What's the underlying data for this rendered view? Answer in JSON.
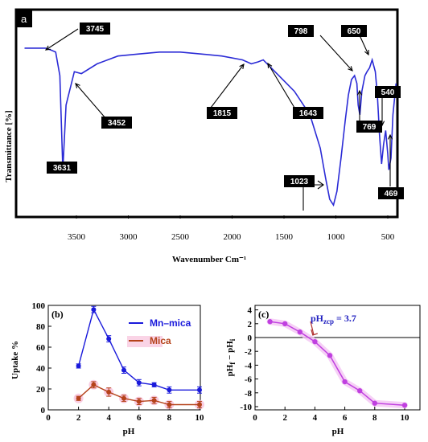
{
  "ftir": {
    "panel_label": "a",
    "xlabel": "Wavenumber  Cm⁻¹",
    "ylabel": "Transmittance  [%]",
    "xticks": [
      "3500",
      "3000",
      "2500",
      "2000",
      "1500",
      "1000",
      "500"
    ],
    "peaks": [
      "3745",
      "3631",
      "3452",
      "1815",
      "1643",
      "1023",
      "798",
      "650",
      "769",
      "540",
      "469"
    ]
  },
  "chart_data": [
    {
      "type": "line",
      "panel": "a",
      "xlabel": "Wavenumber  Cm⁻¹",
      "ylabel": "Transmittance  [%]",
      "xlim": [
        4000,
        400
      ],
      "annotated_peaks": [
        3745,
        3631,
        3452,
        1815,
        1643,
        1023,
        798,
        650,
        769,
        540,
        469
      ],
      "x": [
        4000,
        3800,
        3745,
        3700,
        3660,
        3631,
        3600,
        3520,
        3452,
        3300,
        3100,
        2900,
        2700,
        2500,
        2300,
        2100,
        1900,
        1815,
        1750,
        1700,
        1643,
        1550,
        1400,
        1250,
        1150,
        1100,
        1060,
        1023,
        990,
        950,
        910,
        880,
        850,
        820,
        798,
        785,
        769,
        750,
        720,
        700,
        675,
        650,
        620,
        600,
        580,
        560,
        540,
        520,
        500,
        490,
        469,
        450,
        420
      ],
      "values": [
        84,
        84,
        83,
        82,
        70,
        22,
        55,
        72,
        71,
        76,
        80,
        81,
        82,
        82,
        81,
        80,
        78,
        76,
        77,
        78,
        75,
        70,
        62,
        50,
        33,
        18,
        7,
        4,
        11,
        28,
        47,
        60,
        68,
        70,
        66,
        55,
        50,
        62,
        70,
        72,
        74,
        78,
        72,
        60,
        40,
        25,
        35,
        42,
        30,
        22,
        28,
        50,
        66
      ]
    },
    {
      "type": "line",
      "panel": "b",
      "xlabel": "pH",
      "ylabel": "Uptake %",
      "xlim": [
        0,
        10
      ],
      "ylim": [
        0,
        100
      ],
      "xticks": [
        0,
        2,
        4,
        6,
        8,
        10
      ],
      "yticks": [
        0,
        20,
        40,
        60,
        80,
        100
      ],
      "legend": "top-right",
      "x": [
        2,
        3,
        4,
        5,
        6,
        7,
        8,
        10
      ],
      "series": [
        {
          "name": "Mn–mica",
          "color": "#1a1adb",
          "values": [
            42,
            96,
            68,
            38,
            26,
            24,
            19,
            19
          ],
          "errors": [
            2,
            3,
            3,
            3,
            3,
            2,
            3,
            3
          ]
        },
        {
          "name": "Mica",
          "color": "#b5421a",
          "values": [
            11,
            24,
            17,
            11,
            8,
            9,
            5,
            5
          ],
          "errors": [
            2,
            3,
            4,
            3,
            3,
            3,
            3,
            3
          ]
        }
      ]
    },
    {
      "type": "line",
      "panel": "c",
      "xlabel": "pH",
      "ylabel": "pHᶠ − pHᵢ",
      "xlim": [
        0,
        10.5
      ],
      "ylim": [
        -11,
        4.5
      ],
      "xticks": [
        0,
        2,
        4,
        6,
        8,
        10
      ],
      "yticks": [
        4,
        2,
        0,
        -2,
        -4,
        -6,
        -8,
        -10
      ],
      "annotation": "pHzcp = 3.7",
      "x": [
        1,
        2,
        3,
        4,
        5,
        6,
        7,
        8,
        10
      ],
      "series": [
        {
          "name": "",
          "color": "#c040e0",
          "values": [
            2.3,
            2.0,
            0.8,
            -0.6,
            -2.6,
            -6.4,
            -7.7,
            -9.5,
            -9.8
          ]
        }
      ]
    }
  ],
  "panels": {
    "b_label": "(b)",
    "c_label": "(c)",
    "c_annot_main": "pH",
    "c_annot_sub": "zcp",
    "c_annot_val": " = 3.7",
    "c_ylabel_main": "pH",
    "c_ylabel_f": "f",
    "c_ylabel_mid": " − pH",
    "c_ylabel_i": "i"
  },
  "colors": {
    "blue": "#1a1adb",
    "mica": "#b5421a",
    "violet": "#c040e0",
    "mica_glow": "#f7b8d6",
    "violet_glow": "#f4c4f4"
  }
}
